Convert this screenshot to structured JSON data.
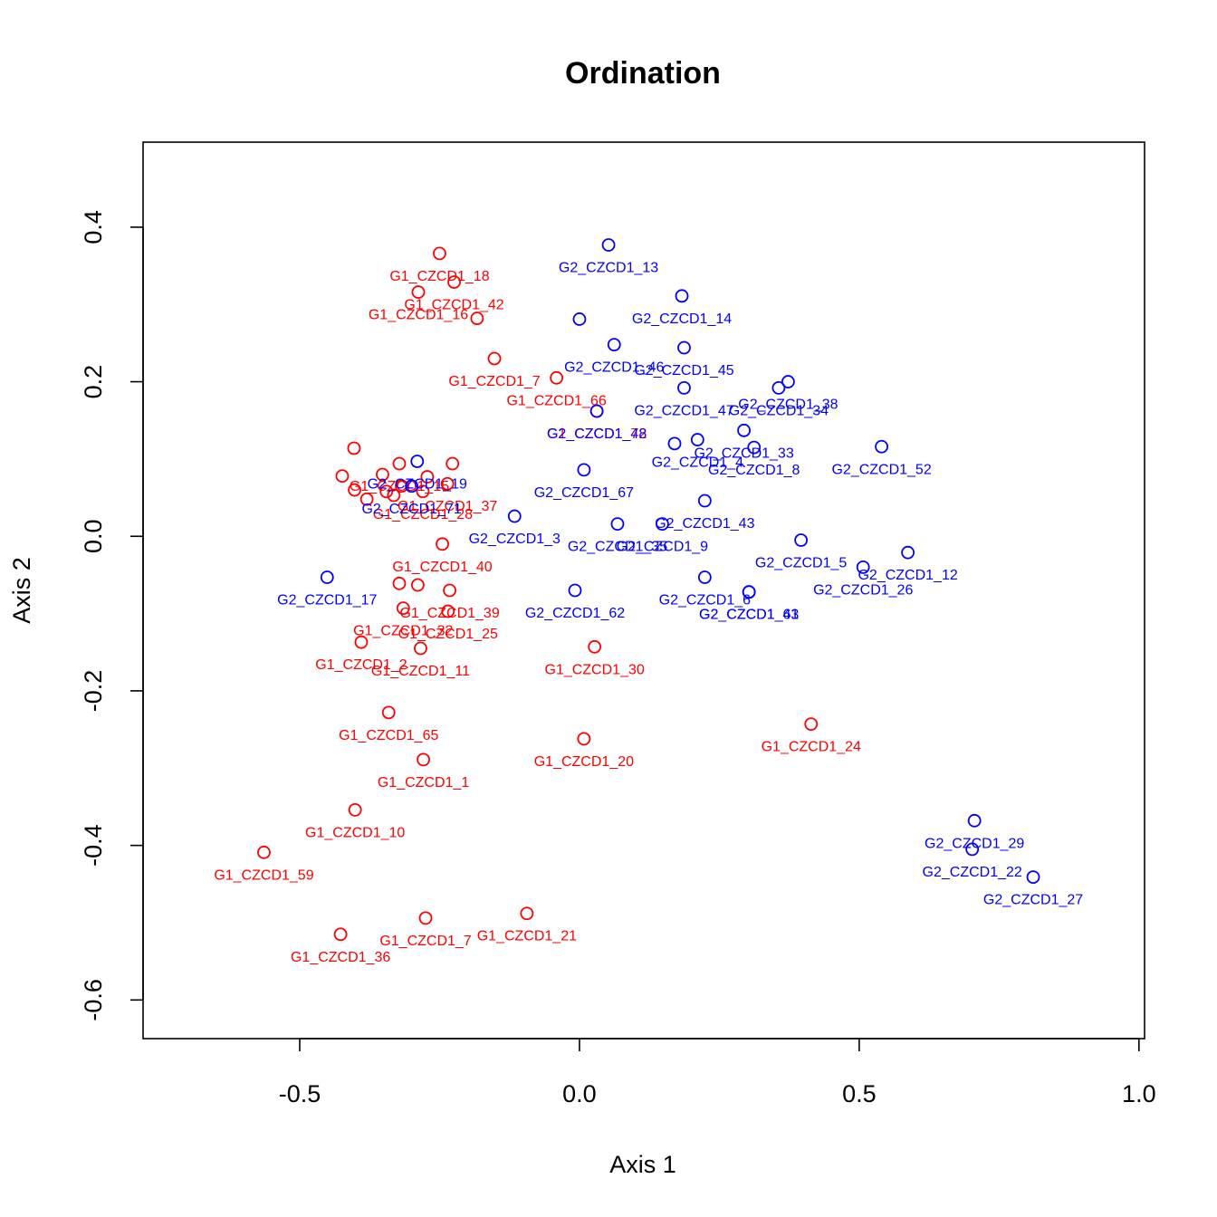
{
  "chart_data": {
    "type": "scatter",
    "title": "Ordination",
    "xlabel": "Axis 1",
    "ylabel": "Axis 2",
    "xlim": [
      -0.78,
      1.01
    ],
    "ylim": [
      -0.65,
      0.51
    ],
    "xticks": [
      -0.5,
      0.0,
      0.5,
      1.0
    ],
    "xtick_labels": [
      "-0.5",
      "0.0",
      "0.5",
      "1.0"
    ],
    "yticks": [
      -0.6,
      -0.4,
      -0.2,
      0.0,
      0.2,
      0.4
    ],
    "ytick_labels": [
      "-0.6",
      "-0.4",
      "-0.2",
      "0.0",
      "0.2",
      "0.4"
    ],
    "grid": false,
    "legend": "none",
    "colors": {
      "G1": "#ff0000",
      "G2": "#0000ff"
    },
    "series": [
      {
        "color": "#ff0000",
        "points": [
          {
            "label": "G1_CZCD1_18",
            "x": -0.25,
            "y": 0.366
          },
          {
            "label": "G1_CZCD1_42",
            "x": -0.224,
            "y": 0.329
          },
          {
            "label": "G1_CZCD1_16",
            "x": -0.288,
            "y": 0.316
          },
          {
            "label": "",
            "x": -0.183,
            "y": 0.282
          },
          {
            "label": "G1_CZCD1_7",
            "x": -0.152,
            "y": 0.23
          },
          {
            "label": "G1_CZCD1_66",
            "x": -0.041,
            "y": 0.205
          },
          {
            "label": "G1_CZCD1_72",
            "x": 0.031,
            "y": 0.162
          },
          {
            "label": "",
            "x": -0.403,
            "y": 0.114
          },
          {
            "label": "G1_CZCD1_15",
            "x": -0.322,
            "y": 0.094
          },
          {
            "label": "",
            "x": -0.227,
            "y": 0.094
          },
          {
            "label": "",
            "x": -0.352,
            "y": 0.08
          },
          {
            "label": "",
            "x": -0.424,
            "y": 0.078
          },
          {
            "label": "",
            "x": -0.272,
            "y": 0.077
          },
          {
            "label": "G1_CZCD1_37",
            "x": -0.236,
            "y": 0.068
          },
          {
            "label": "",
            "x": -0.318,
            "y": 0.065
          },
          {
            "label": "",
            "x": -0.402,
            "y": 0.06
          },
          {
            "label": "",
            "x": -0.345,
            "y": 0.058
          },
          {
            "label": "G1_CZCD1_28",
            "x": -0.28,
            "y": 0.058
          },
          {
            "label": "",
            "x": -0.332,
            "y": 0.053
          },
          {
            "label": "",
            "x": -0.38,
            "y": 0.048
          },
          {
            "label": "G1_CZCD1_40",
            "x": -0.245,
            "y": -0.01
          },
          {
            "label": "",
            "x": -0.322,
            "y": -0.061
          },
          {
            "label": "",
            "x": -0.289,
            "y": -0.063
          },
          {
            "label": "G1_CZCD1_39",
            "x": -0.232,
            "y": -0.07
          },
          {
            "label": "G1_CZCD1_32",
            "x": -0.315,
            "y": -0.093
          },
          {
            "label": "G1_CZCD1_25",
            "x": -0.235,
            "y": -0.097
          },
          {
            "label": "G1_CZCD1_2",
            "x": -0.39,
            "y": -0.137
          },
          {
            "label": "G1_CZCD1_11",
            "x": -0.284,
            "y": -0.145
          },
          {
            "label": "G1_CZCD1_30",
            "x": 0.027,
            "y": -0.143
          },
          {
            "label": "G1_CZCD1_65",
            "x": -0.341,
            "y": -0.228
          },
          {
            "label": "G1_CZCD1_24",
            "x": 0.414,
            "y": -0.243
          },
          {
            "label": "G1_CZCD1_20",
            "x": 0.008,
            "y": -0.262
          },
          {
            "label": "G1_CZCD1_1",
            "x": -0.279,
            "y": -0.289
          },
          {
            "label": "G1_CZCD1_10",
            "x": -0.401,
            "y": -0.354
          },
          {
            "label": "G1_CZCD1_59",
            "x": -0.564,
            "y": -0.409
          },
          {
            "label": "G1_CZCD1_21",
            "x": -0.094,
            "y": -0.488
          },
          {
            "label": "G1_CZCD1_7",
            "x": -0.275,
            "y": -0.494
          },
          {
            "label": "G1_CZCD1_36",
            "x": -0.427,
            "y": -0.515
          }
        ]
      },
      {
        "color": "#0000ff",
        "points": [
          {
            "label": "G2_CZCD1_13",
            "x": 0.052,
            "y": 0.377
          },
          {
            "label": "G2_CZCD1_14",
            "x": 0.183,
            "y": 0.311
          },
          {
            "label": "",
            "x": 0.0,
            "y": 0.281
          },
          {
            "label": "G2_CZCD1_46",
            "x": 0.062,
            "y": 0.248
          },
          {
            "label": "G2_CZCD1_45",
            "x": 0.187,
            "y": 0.244
          },
          {
            "label": "G2_CZCD1_38",
            "x": 0.373,
            "y": 0.2
          },
          {
            "label": "G2_CZCD1_34",
            "x": 0.356,
            "y": 0.192
          },
          {
            "label": "G2_CZCD1_47",
            "x": 0.187,
            "y": 0.192
          },
          {
            "label": "G2_CZCD1_48",
            "x": 0.031,
            "y": 0.162
          },
          {
            "label": "G2_CZCD1_33",
            "x": 0.294,
            "y": 0.137
          },
          {
            "label": "G2_CZCD1_4",
            "x": 0.211,
            "y": 0.125
          },
          {
            "label": "",
            "x": 0.17,
            "y": 0.12
          },
          {
            "label": "G2_CZCD1_8",
            "x": 0.312,
            "y": 0.115
          },
          {
            "label": "G2_CZCD1_52",
            "x": 0.54,
            "y": 0.116
          },
          {
            "label": "G2_CZCD1_19",
            "x": -0.29,
            "y": 0.097
          },
          {
            "label": "G2_CZCD1_67",
            "x": 0.008,
            "y": 0.086
          },
          {
            "label": "G2_CZCD1_71",
            "x": -0.3,
            "y": 0.065
          },
          {
            "label": "G2_CZCD1_43",
            "x": 0.224,
            "y": 0.046
          },
          {
            "label": "G2_CZCD1_3",
            "x": -0.116,
            "y": 0.026
          },
          {
            "label": "G2_CZCD1_9",
            "x": 0.148,
            "y": 0.016
          },
          {
            "label": "G2_CZCD1_35",
            "x": 0.068,
            "y": 0.016
          },
          {
            "label": "G2_CZCD1_5",
            "x": 0.396,
            "y": -0.005
          },
          {
            "label": "G2_CZCD1_12",
            "x": 0.587,
            "y": -0.021
          },
          {
            "label": "G2_CZCD1_26",
            "x": 0.507,
            "y": -0.04
          },
          {
            "label": "G2_CZCD1_17",
            "x": -0.451,
            "y": -0.053
          },
          {
            "label": "G2_CZCD1_6",
            "x": 0.224,
            "y": -0.053
          },
          {
            "label": "G2_CZCD1_62",
            "x": -0.008,
            "y": -0.07
          },
          {
            "label": "G2_CZCD1_63",
            "x": 0.303,
            "y": -0.072
          },
          {
            "label": "G2_CZCD1_41",
            "x": 0.303,
            "y": -0.072
          },
          {
            "label": "G2_CZCD1_29",
            "x": 0.706,
            "y": -0.368
          },
          {
            "label": "G2_CZCD1_22",
            "x": 0.702,
            "y": -0.405
          },
          {
            "label": "G2_CZCD1_27",
            "x": 0.811,
            "y": -0.441
          }
        ]
      }
    ]
  }
}
